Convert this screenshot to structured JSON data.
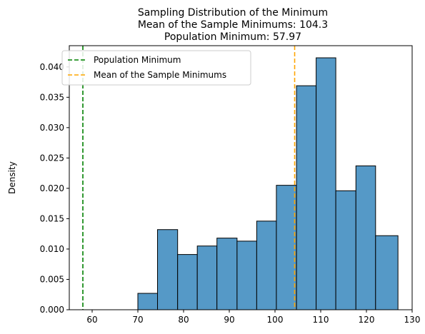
{
  "chart_data": {
    "type": "bar",
    "title": [
      "Sampling Distribution of the Minimum",
      "Mean of the Sample Minimums: 104.3",
      "Population Minimum: 57.97"
    ],
    "xlabel": "",
    "ylabel": "Density",
    "xlim": [
      55,
      130
    ],
    "ylim": [
      0,
      0.0435
    ],
    "xticks": [
      60,
      70,
      80,
      90,
      100,
      110,
      120,
      130
    ],
    "yticks": [
      0.0,
      0.005,
      0.01,
      0.015,
      0.02,
      0.025,
      0.03,
      0.035,
      0.04
    ],
    "ytick_labels": [
      "0.000",
      "0.005",
      "0.010",
      "0.015",
      "0.020",
      "0.025",
      "0.030",
      "0.035",
      "0.040"
    ],
    "bins": [
      {
        "x0": 70.0,
        "x1": 74.3,
        "density": 0.0027
      },
      {
        "x0": 74.3,
        "x1": 78.7,
        "density": 0.0132
      },
      {
        "x0": 78.7,
        "x1": 83.0,
        "density": 0.0091
      },
      {
        "x0": 83.0,
        "x1": 87.3,
        "density": 0.0105
      },
      {
        "x0": 87.3,
        "x1": 91.7,
        "density": 0.0118
      },
      {
        "x0": 91.7,
        "x1": 96.0,
        "density": 0.0113
      },
      {
        "x0": 96.0,
        "x1": 100.3,
        "density": 0.0146
      },
      {
        "x0": 100.3,
        "x1": 104.7,
        "density": 0.0205
      },
      {
        "x0": 104.7,
        "x1": 109.0,
        "density": 0.0369
      },
      {
        "x0": 109.0,
        "x1": 113.3,
        "density": 0.0415
      },
      {
        "x0": 113.3,
        "x1": 117.7,
        "density": 0.0196
      },
      {
        "x0": 117.7,
        "x1": 122.0,
        "density": 0.0237
      },
      {
        "x0": 122.0,
        "x1": 126.9,
        "density": 0.0122
      }
    ],
    "vlines": [
      {
        "name": "Population Minimum",
        "x": 57.97,
        "color": "#008000"
      },
      {
        "name": "Mean of the Sample Minimums",
        "x": 104.3,
        "color": "#ffa500"
      }
    ],
    "bar_color": "#5599c7",
    "bar_edge_color": "#000000",
    "legend_position": "top-left",
    "grid": false
  }
}
